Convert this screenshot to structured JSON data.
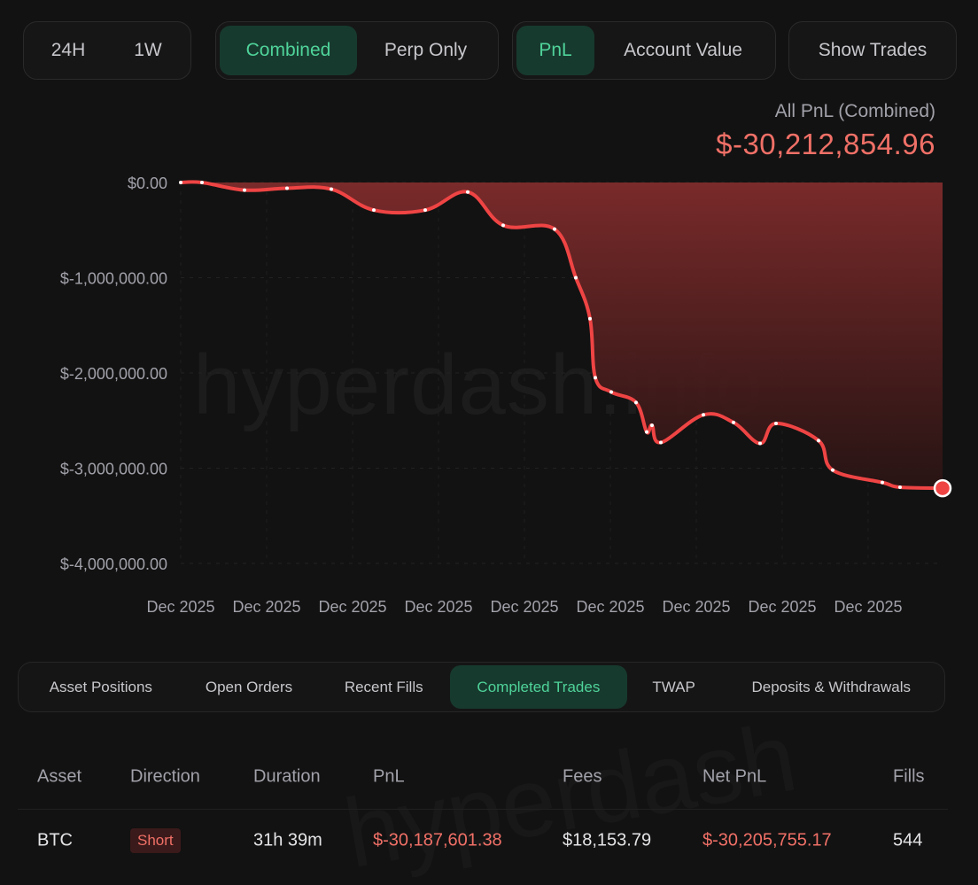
{
  "range_buttons": [
    "24H",
    "1W"
  ],
  "mode_buttons": {
    "combined": "Combined",
    "perp_only": "Perp Only"
  },
  "metric_buttons": {
    "pnl": "PnL",
    "account_value": "Account Value"
  },
  "show_trades": "Show Trades",
  "summary": {
    "label": "All PnL (Combined)",
    "value": "$-30,212,854.96"
  },
  "watermark": "hyperdash.info",
  "colors": {
    "accent_green": "#4fd39a",
    "negative_red": "#f07067",
    "line_red": "#ef4444"
  },
  "chart_data": {
    "type": "area",
    "y_ticks": [
      "$0.00",
      "$-1,000,000.00",
      "$-2,000,000.00",
      "$-3,000,000.00",
      "$-4,000,000.00"
    ],
    "x_ticks": [
      "Dec 2025",
      "Dec 2025",
      "Dec 2025",
      "Dec 2025",
      "Dec 2025",
      "Dec 2025",
      "Dec 2025",
      "Dec 2025",
      "Dec 2025"
    ],
    "ylim": [
      -4000000,
      0
    ],
    "series_y": [
      0,
      0,
      -80000,
      -60000,
      -70000,
      -290000,
      -290000,
      -100000,
      -450000,
      -490000,
      -1000000,
      -1430000,
      -2050000,
      -2200000,
      -2310000,
      -2620000,
      -2550000,
      -2730000,
      -2440000,
      -2520000,
      -2740000,
      -2530000,
      -2710000,
      -3020000,
      -3150000,
      -3200000,
      -3210000
    ]
  },
  "tabs": [
    "Asset Positions",
    "Open Orders",
    "Recent Fills",
    "Completed Trades",
    "TWAP",
    "Deposits & Withdrawals"
  ],
  "table": {
    "headers": [
      "Asset",
      "Direction",
      "Duration",
      "PnL",
      "Fees",
      "Net PnL",
      "Fills"
    ],
    "rows": [
      {
        "asset": "BTC",
        "direction": "Short",
        "duration": "31h 39m",
        "pnl": "$-30,187,601.38",
        "fees": "$18,153.79",
        "net_pnl": "$-30,205,755.17",
        "fills": "544"
      }
    ]
  },
  "table_watermark": "hyperdash"
}
